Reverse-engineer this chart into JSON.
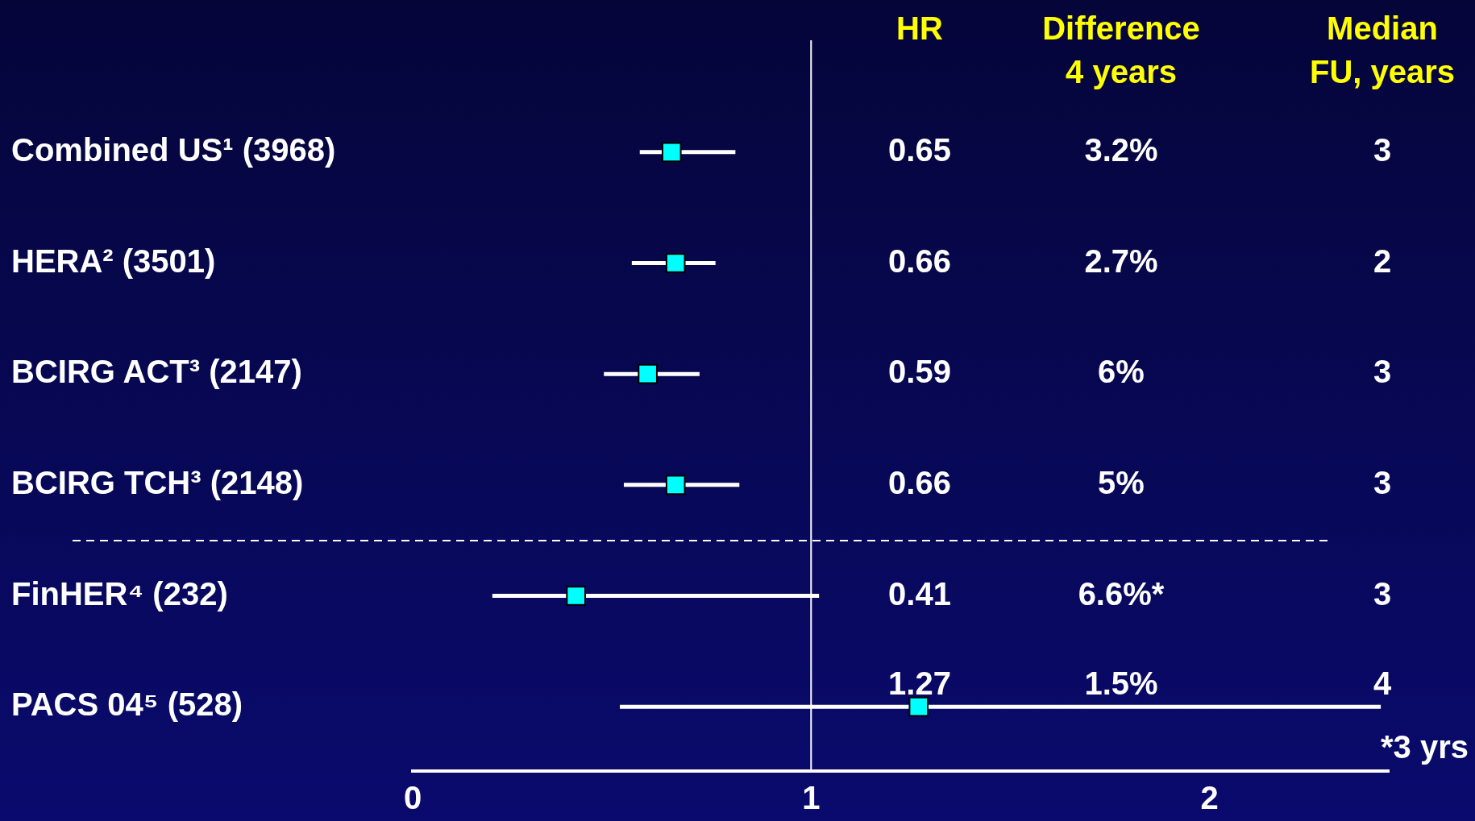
{
  "chart_data": {
    "type": "scatter",
    "orientation": "horizontal",
    "categories": [
      "Combined US¹ (3968)",
      "HERA² (3501)",
      "BCIRG ACT³ (2147)",
      "BCIRG TCH³ (2148)",
      "FinHER⁴ (232)",
      "PACS 04⁵ (528)"
    ],
    "values": [
      0.65,
      0.66,
      0.59,
      0.66,
      0.41,
      1.27
    ],
    "errors": [
      [
        0.57,
        0.81
      ],
      [
        0.55,
        0.76
      ],
      [
        0.48,
        0.72
      ],
      [
        0.53,
        0.82
      ],
      [
        0.2,
        1.02
      ],
      [
        0.52,
        2.43
      ]
    ],
    "color": "#00ffff",
    "marker": "square",
    "grid": false,
    "legend": false,
    "xlim": [
      0,
      2.45
    ],
    "xticks": [
      0,
      1,
      2
    ],
    "ref_lines": [
      {
        "axis": "x",
        "value": 1,
        "color": "#ffffff"
      }
    ],
    "annotations": [
      "HR",
      "Difference\n4 years",
      "Median\nFU, years",
      "0.65",
      "0.66",
      "0.59",
      "0.66",
      "0.41",
      "1.27",
      "3.2%",
      "2.7%",
      "6%",
      "5%",
      "6.6%*",
      "1.5%",
      "3",
      "2",
      "3",
      "3",
      "3",
      "4",
      "*3 yrs"
    ]
  }
}
